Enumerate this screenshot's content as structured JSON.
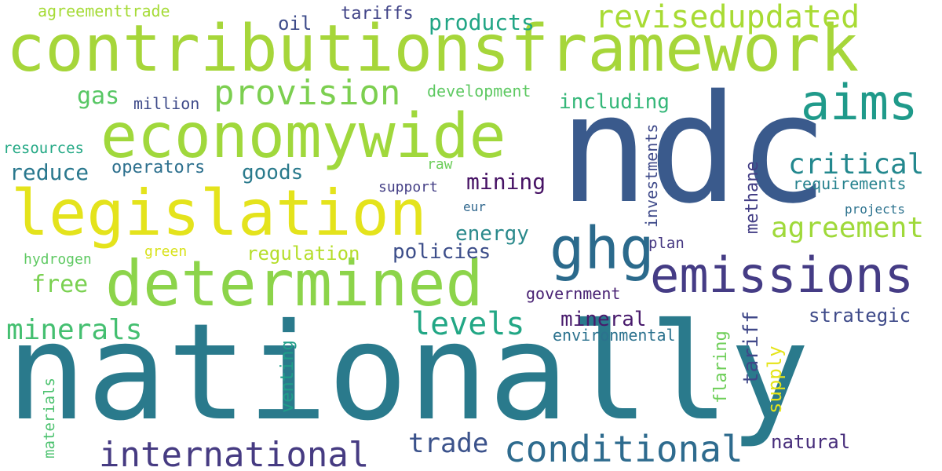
{
  "words": [
    {
      "text": "nationally",
      "color": "#2a7a8c"
    },
    {
      "text": "ndc",
      "color": "#3a5a8c"
    },
    {
      "text": "contributionsframework",
      "color": "#a6d63a"
    },
    {
      "text": "economywide",
      "color": "#a0d83c"
    },
    {
      "text": "legislation",
      "color": "#e4e31c"
    },
    {
      "text": "determined",
      "color": "#8cd44a"
    },
    {
      "text": "emissions",
      "color": "#453c85"
    },
    {
      "text": "international",
      "color": "#463b82"
    },
    {
      "text": "conditional",
      "color": "#2e6b8e"
    },
    {
      "text": "ghg",
      "color": "#2b6a8c"
    },
    {
      "text": "aims",
      "color": "#1f9a8a"
    },
    {
      "text": "revisedupdated",
      "color": "#a8db34"
    },
    {
      "text": "provision",
      "color": "#7ccf50"
    },
    {
      "text": "critical",
      "color": "#23888e"
    },
    {
      "text": "agreement",
      "color": "#9fd93a"
    },
    {
      "text": "levels",
      "color": "#22a785"
    },
    {
      "text": "minerals",
      "color": "#44bf70"
    },
    {
      "text": "trade",
      "color": "#3b528b"
    },
    {
      "text": "mining",
      "color": "#471365"
    },
    {
      "text": "reduce",
      "color": "#2a788e"
    },
    {
      "text": "products",
      "color": "#21a585"
    },
    {
      "text": "gas",
      "color": "#58c765"
    },
    {
      "text": "free",
      "color": "#7ad151"
    },
    {
      "text": "regulation",
      "color": "#b5de2b"
    },
    {
      "text": "energy",
      "color": "#2b8a8c"
    },
    {
      "text": "policies",
      "color": "#3d4e8a"
    },
    {
      "text": "goods",
      "color": "#2a7a8c"
    },
    {
      "text": "operators",
      "color": "#2d708e"
    },
    {
      "text": "including",
      "color": "#35b779"
    },
    {
      "text": "mineral",
      "color": "#481a6c"
    },
    {
      "text": "strategic",
      "color": "#3e4a89"
    },
    {
      "text": "government",
      "color": "#482173"
    },
    {
      "text": "environmental",
      "color": "#2c728e"
    },
    {
      "text": "natural",
      "color": "#472d7b"
    },
    {
      "text": "requirements",
      "color": "#26828e"
    },
    {
      "text": "development",
      "color": "#5ec962"
    },
    {
      "text": "agreementtrade",
      "color": "#a5db36"
    },
    {
      "text": "tariffs",
      "color": "#404387"
    },
    {
      "text": "oil",
      "color": "#3e4c8a"
    },
    {
      "text": "million",
      "color": "#3e4a89"
    },
    {
      "text": "resources",
      "color": "#22a884"
    },
    {
      "text": "support",
      "color": "#433e85"
    },
    {
      "text": "raw",
      "color": "#6ccd5a"
    },
    {
      "text": "eur",
      "color": "#31688e"
    },
    {
      "text": "projects",
      "color": "#2c728e"
    },
    {
      "text": "plan",
      "color": "#453781"
    },
    {
      "text": "hydrogen",
      "color": "#5ec962"
    },
    {
      "text": "green",
      "color": "#d8e219"
    },
    {
      "text": "investments",
      "color": "#3e4989"
    },
    {
      "text": "methane",
      "color": "#433e85"
    },
    {
      "text": "tariff",
      "color": "#3f4788"
    },
    {
      "text": "supply",
      "color": "#e5e419"
    },
    {
      "text": "flaring",
      "color": "#6ece58"
    },
    {
      "text": "venting",
      "color": "#1f9e89"
    },
    {
      "text": "materials",
      "color": "#4ac16d"
    }
  ]
}
